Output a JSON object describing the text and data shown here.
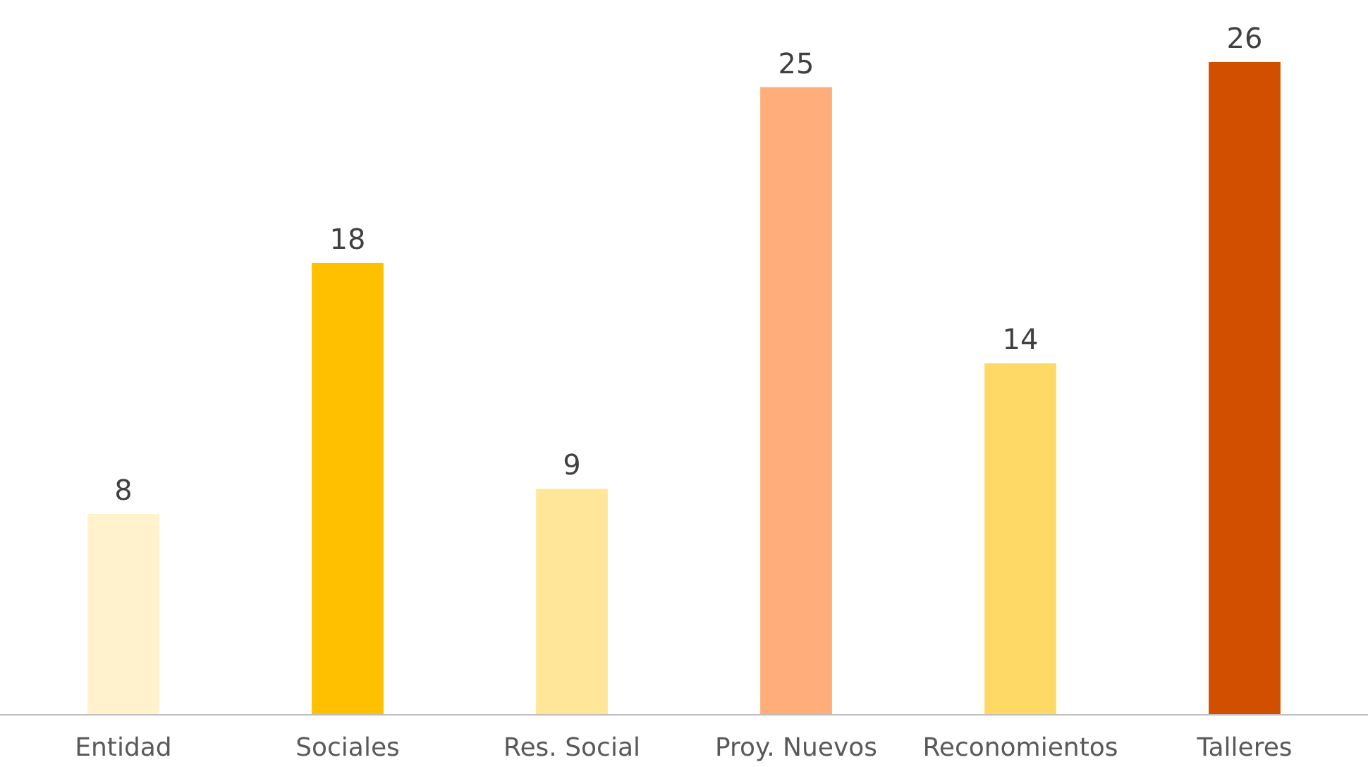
{
  "chart_data": {
    "type": "bar",
    "categories": [
      "Entidad",
      "Sociales",
      "Res. Social",
      "Proy. Nuevos",
      "Reconomientos",
      "Talleres"
    ],
    "values": [
      8,
      18,
      9,
      25,
      14,
      26
    ],
    "colors": [
      "#fff2cc",
      "#ffc000",
      "#ffe699",
      "#ffad7a",
      "#ffd966",
      "#d34f00"
    ],
    "data_labels": true
  }
}
